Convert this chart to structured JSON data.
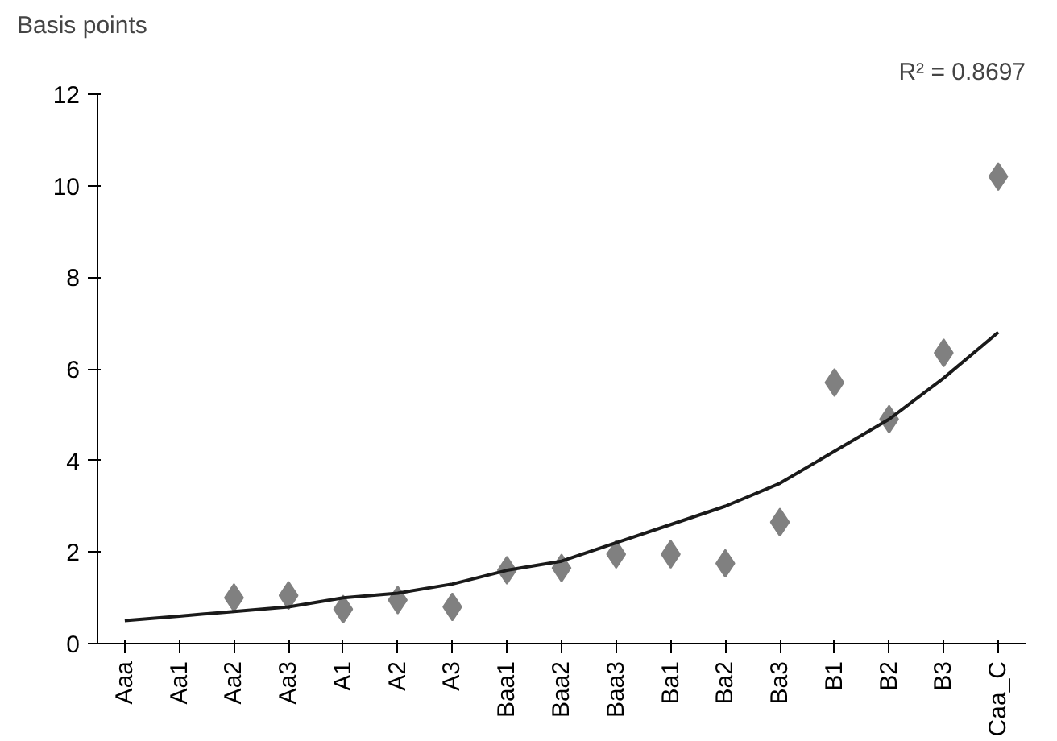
{
  "chart_data": {
    "type": "scatter",
    "ylabel": "Basis points",
    "annotations": [
      "R² = 0.8697"
    ],
    "categories": [
      "Aaa",
      "Aa1",
      "Aa2",
      "Aa3",
      "A1",
      "A2",
      "A3",
      "Baa1",
      "Baa2",
      "Baa3",
      "Ba1",
      "Ba2",
      "Ba3",
      "B1",
      "B2",
      "B3",
      "Caa_C"
    ],
    "series": [
      {
        "color": "#808080",
        "marker": "diamond",
        "values": [
          null,
          null,
          1.0,
          1.05,
          0.75,
          0.95,
          0.8,
          1.6,
          1.65,
          1.95,
          1.95,
          1.75,
          2.65,
          5.7,
          4.9,
          6.35,
          10.2
        ]
      },
      {
        "type": "line",
        "color": "#1a1a1a",
        "marker": "none",
        "line_style": "solid",
        "values": [
          0.5,
          0.6,
          0.7,
          0.8,
          1.0,
          1.1,
          1.3,
          1.6,
          1.8,
          2.2,
          2.6,
          3.0,
          3.5,
          4.2,
          4.9,
          5.8,
          6.8
        ]
      }
    ],
    "ylim": [
      0,
      12
    ],
    "yticks": [
      0,
      2,
      4,
      6,
      8,
      10,
      12
    ],
    "grid": false
  }
}
